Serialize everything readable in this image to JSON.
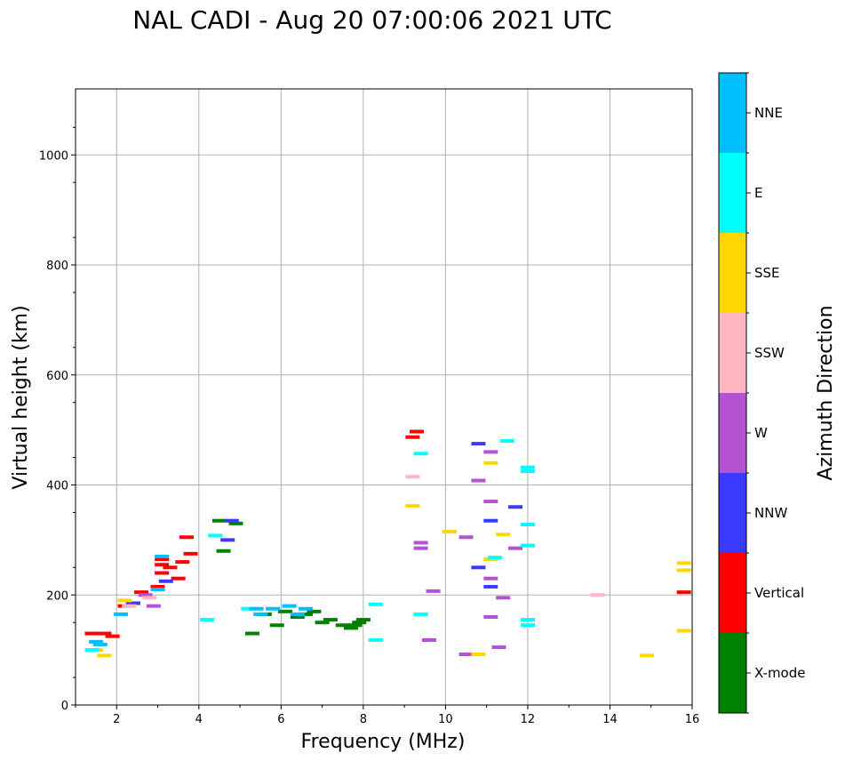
{
  "chart_data": {
    "type": "scatter",
    "title": "NAL CADI - Aug 20 07:00:06 2021 UTC",
    "xlabel": "Frequency (MHz)",
    "ylabel": "Virtual height (km)",
    "xlim": [
      1,
      16
    ],
    "ylim": [
      0,
      1120
    ],
    "xticks": [
      2,
      4,
      6,
      8,
      10,
      12,
      14,
      16
    ],
    "xtick_labels": [
      "2",
      "4",
      "6",
      "8",
      "10",
      "12",
      "14",
      "16"
    ],
    "yticks": [
      0,
      200,
      400,
      600,
      800,
      1000
    ],
    "ytick_labels": [
      "0",
      "200",
      "400",
      "600",
      "800",
      "1000"
    ],
    "grid": true,
    "colorbar": {
      "label": "Azimuth Direction",
      "categories": [
        "X-mode",
        "Vertical",
        "NNW",
        "W",
        "SSW",
        "SSE",
        "E",
        "NNE"
      ],
      "colors": [
        "#008000",
        "#ff0000",
        "#3a3aff",
        "#b452d2",
        "#ffb6c1",
        "#ffd700",
        "#00ffff",
        "#00bfff"
      ]
    },
    "series": [
      {
        "name": "X-mode",
        "points": [
          [
            4.6,
            280
          ],
          [
            4.5,
            335
          ],
          [
            4.9,
            330
          ],
          [
            5.3,
            130
          ],
          [
            5.6,
            165
          ],
          [
            5.9,
            145
          ],
          [
            6.1,
            170
          ],
          [
            6.4,
            160
          ],
          [
            6.6,
            165
          ],
          [
            6.8,
            170
          ],
          [
            7.0,
            150
          ],
          [
            7.2,
            155
          ],
          [
            7.5,
            145
          ],
          [
            7.8,
            145
          ],
          [
            7.9,
            150
          ],
          [
            8.0,
            155
          ],
          [
            7.7,
            140
          ]
        ]
      },
      {
        "name": "Vertical",
        "points": [
          [
            1.7,
            130
          ],
          [
            1.9,
            125
          ],
          [
            2.2,
            180
          ],
          [
            2.4,
            185
          ],
          [
            2.6,
            205
          ],
          [
            3.0,
            215
          ],
          [
            3.1,
            240
          ],
          [
            3.1,
            255
          ],
          [
            3.3,
            250
          ],
          [
            3.5,
            230
          ],
          [
            3.6,
            260
          ],
          [
            3.8,
            275
          ],
          [
            3.7,
            305
          ],
          [
            3.1,
            265
          ],
          [
            9.2,
            487
          ],
          [
            9.3,
            497
          ],
          [
            15.8,
            205
          ],
          [
            1.4,
            130
          ]
        ]
      },
      {
        "name": "NNW",
        "points": [
          [
            2.4,
            185
          ],
          [
            3.2,
            225
          ],
          [
            4.7,
            300
          ],
          [
            4.8,
            335
          ],
          [
            10.8,
            250
          ],
          [
            10.8,
            475
          ],
          [
            11.1,
            215
          ],
          [
            11.1,
            335
          ],
          [
            11.7,
            360
          ]
        ]
      },
      {
        "name": "W",
        "points": [
          [
            2.9,
            180
          ],
          [
            2.7,
            200
          ],
          [
            9.4,
            285
          ],
          [
            9.4,
            295
          ],
          [
            9.6,
            118
          ],
          [
            9.7,
            207
          ],
          [
            10.5,
            305
          ],
          [
            10.8,
            408
          ],
          [
            11.1,
            230
          ],
          [
            11.1,
            370
          ],
          [
            11.1,
            460
          ],
          [
            11.3,
            105
          ],
          [
            11.4,
            195
          ],
          [
            11.7,
            285
          ],
          [
            10.5,
            92
          ],
          [
            11.1,
            160
          ]
        ]
      },
      {
        "name": "SSW",
        "points": [
          [
            2.8,
            195
          ],
          [
            9.2,
            415
          ],
          [
            13.7,
            200
          ],
          [
            2.3,
            180
          ]
        ]
      },
      {
        "name": "SSE",
        "points": [
          [
            1.5,
            100
          ],
          [
            2.2,
            190
          ],
          [
            9.2,
            362
          ],
          [
            10.1,
            315
          ],
          [
            11.1,
            265
          ],
          [
            11.1,
            440
          ],
          [
            11.4,
            310
          ],
          [
            10.8,
            92
          ],
          [
            14.9,
            90
          ],
          [
            15.8,
            135
          ],
          [
            15.8,
            245
          ],
          [
            15.8,
            258
          ],
          [
            1.7,
            90
          ]
        ]
      },
      {
        "name": "E",
        "points": [
          [
            4.2,
            155
          ],
          [
            4.4,
            308
          ],
          [
            5.2,
            175
          ],
          [
            8.3,
            183
          ],
          [
            8.3,
            118
          ],
          [
            9.4,
            457
          ],
          [
            9.4,
            165
          ],
          [
            11.2,
            268
          ],
          [
            11.5,
            480
          ],
          [
            12.0,
            425
          ],
          [
            12.0,
            432
          ],
          [
            12.0,
            290
          ],
          [
            12.0,
            155
          ],
          [
            12.0,
            145
          ],
          [
            12.0,
            328
          ],
          [
            1.4,
            100
          ]
        ]
      },
      {
        "name": "NNE",
        "points": [
          [
            1.6,
            110
          ],
          [
            2.1,
            165
          ],
          [
            3.0,
            210
          ],
          [
            3.1,
            270
          ],
          [
            5.5,
            165
          ],
          [
            5.8,
            175
          ],
          [
            6.2,
            180
          ],
          [
            6.4,
            165
          ],
          [
            6.6,
            175
          ],
          [
            1.5,
            115
          ],
          [
            5.4,
            175
          ]
        ]
      }
    ]
  }
}
